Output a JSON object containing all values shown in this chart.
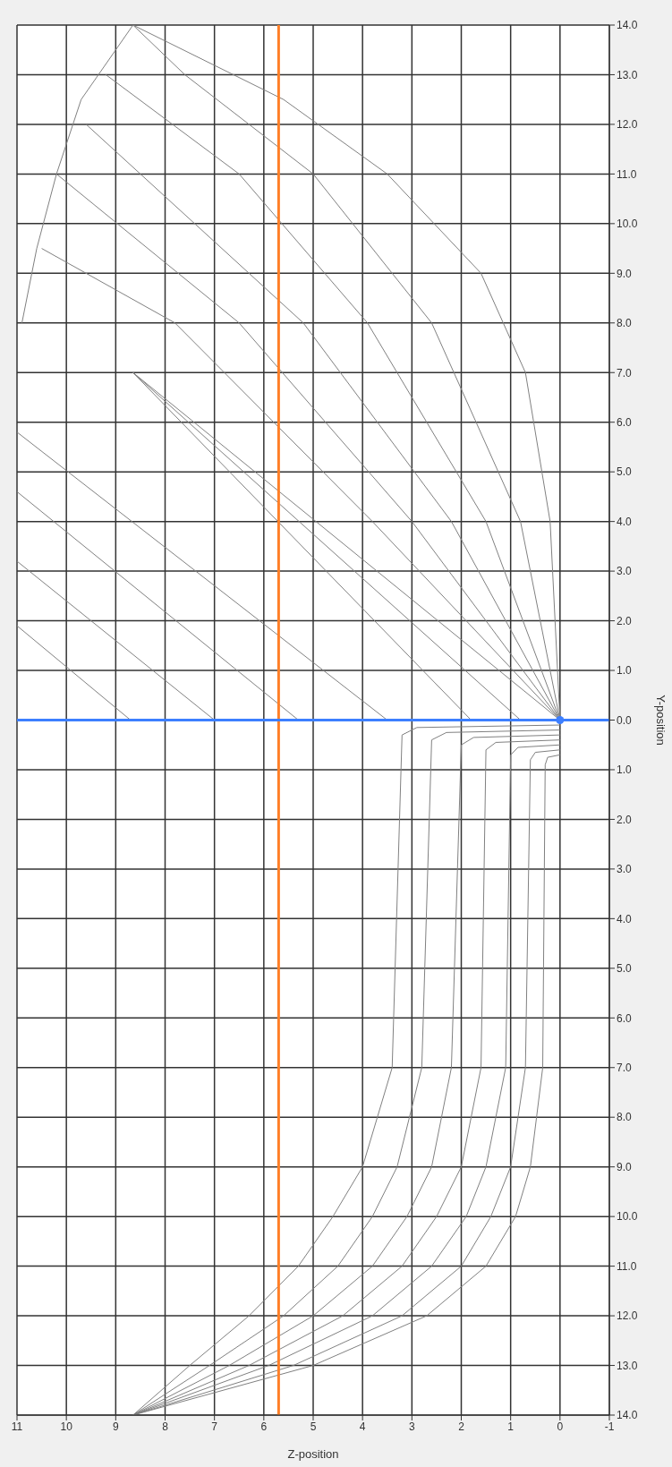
{
  "chart_data": {
    "type": "line",
    "xlabel": "Z-position",
    "ylabel": "Y-position",
    "xlim": [
      11,
      -1
    ],
    "xticks": [
      11,
      10,
      9,
      8,
      7,
      6,
      5,
      4,
      3,
      2,
      1,
      0,
      -1
    ],
    "ylim": [
      -14,
      14
    ],
    "yticks": [
      {
        "value": -14,
        "label": "14.0"
      },
      {
        "value": -13,
        "label": "13.0"
      },
      {
        "value": -12,
        "label": "12.0"
      },
      {
        "value": -11,
        "label": "11.0"
      },
      {
        "value": -10,
        "label": "10.0"
      },
      {
        "value": -9,
        "label": "9.0"
      },
      {
        "value": -8,
        "label": "8.0"
      },
      {
        "value": -7,
        "label": "7.0"
      },
      {
        "value": -6,
        "label": "6.0"
      },
      {
        "value": -5,
        "label": "5.0"
      },
      {
        "value": -4,
        "label": "4.0"
      },
      {
        "value": -3,
        "label": "3.0"
      },
      {
        "value": -2,
        "label": "2.0"
      },
      {
        "value": -1,
        "label": "1.0"
      },
      {
        "value": 0,
        "label": "0.0"
      },
      {
        "value": 1,
        "label": "1.0"
      },
      {
        "value": 2,
        "label": "2.0"
      },
      {
        "value": 3,
        "label": "3.0"
      },
      {
        "value": 4,
        "label": "4.0"
      },
      {
        "value": 5,
        "label": "5.0"
      },
      {
        "value": 6,
        "label": "6.0"
      },
      {
        "value": 7,
        "label": "7.0"
      },
      {
        "value": 8,
        "label": "8.0"
      },
      {
        "value": 9,
        "label": "9.0"
      },
      {
        "value": 10,
        "label": "10.0"
      },
      {
        "value": 11,
        "label": "11.0"
      },
      {
        "value": 12,
        "label": "12.0"
      },
      {
        "value": 13,
        "label": "13.0"
      },
      {
        "value": 14,
        "label": "14.0"
      }
    ],
    "grid": true,
    "ref_lines": [
      {
        "axis": "x",
        "value": 5.7,
        "color": "#ff7f27"
      },
      {
        "axis": "y",
        "value": 0,
        "color": "#3d7fff"
      }
    ],
    "series": [
      {
        "color": "#808080",
        "x": [
          0,
          8.65
        ],
        "values": [
          0,
          7
        ]
      },
      {
        "color": "#808080",
        "x": [
          0,
          3.8,
          7.8,
          10.5
        ],
        "values": [
          0,
          4,
          8,
          9.5
        ]
      },
      {
        "color": "#808080",
        "x": [
          0,
          3.0,
          6.5,
          10.2
        ],
        "values": [
          0,
          4,
          8,
          11
        ]
      },
      {
        "color": "#808080",
        "x": [
          0,
          2.2,
          5.2,
          9.6
        ],
        "values": [
          0,
          4,
          8,
          12
        ]
      },
      {
        "color": "#808080",
        "x": [
          0,
          1.5,
          3.9,
          6.5,
          9.2
        ],
        "values": [
          0,
          4,
          8,
          11,
          13
        ]
      },
      {
        "color": "#808080",
        "x": [
          0,
          0.8,
          2.6,
          5.0,
          7.6,
          8.65
        ],
        "values": [
          0,
          4,
          8,
          11,
          13,
          14
        ]
      },
      {
        "color": "#808080",
        "x": [
          0,
          0.2,
          0.7,
          1.6,
          3.5,
          5.6,
          8.65
        ],
        "values": [
          0,
          4,
          7,
          9,
          11,
          12.5,
          14
        ]
      },
      {
        "color": "#808080",
        "x": [
          8.7,
          11
        ],
        "values": [
          0,
          1.9
        ]
      },
      {
        "color": "#808080",
        "x": [
          7.0,
          11
        ],
        "values": [
          0,
          3.2
        ]
      },
      {
        "color": "#808080",
        "x": [
          5.3,
          11
        ],
        "values": [
          0,
          4.6
        ]
      },
      {
        "color": "#808080",
        "x": [
          3.5,
          11
        ],
        "values": [
          0,
          5.8
        ]
      },
      {
        "color": "#808080",
        "x": [
          1.8,
          8.65
        ],
        "values": [
          0,
          7
        ]
      },
      {
        "color": "#808080",
        "x": [
          0.8,
          8.65
        ],
        "values": [
          0,
          7
        ]
      },
      {
        "color": "#808080",
        "x": [
          10.9,
          10.6,
          10.2,
          9.7,
          8.65
        ],
        "values": [
          8,
          9.5,
          11,
          12.5,
          14
        ]
      },
      {
        "color": "#808080",
        "x": [
          0,
          2.9,
          3.2,
          3.4,
          4.0,
          4.6,
          5.3,
          6.3,
          7.5,
          8.65
        ],
        "values": [
          -0.1,
          -0.15,
          -0.3,
          -7,
          -9,
          -10,
          -11,
          -12,
          -13,
          -14
        ]
      },
      {
        "color": "#808080",
        "x": [
          0,
          2.3,
          2.6,
          2.8,
          3.3,
          3.8,
          4.5,
          5.6,
          7.1,
          8.65
        ],
        "values": [
          -0.2,
          -0.25,
          -0.4,
          -7,
          -9,
          -10,
          -11,
          -12,
          -13,
          -14
        ]
      },
      {
        "color": "#808080",
        "x": [
          0,
          1.75,
          2.0,
          2.2,
          2.6,
          3.1,
          3.8,
          5.0,
          6.7,
          8.65
        ],
        "values": [
          -0.3,
          -0.35,
          -0.5,
          -7,
          -9,
          -10,
          -11,
          -12,
          -13,
          -14
        ]
      },
      {
        "color": "#808080",
        "x": [
          0,
          1.3,
          1.5,
          1.6,
          2.0,
          2.5,
          3.2,
          4.4,
          6.3,
          8.65
        ],
        "values": [
          -0.4,
          -0.45,
          -0.6,
          -7,
          -9,
          -10,
          -11,
          -12,
          -13,
          -14
        ]
      },
      {
        "color": "#808080",
        "x": [
          0,
          0.85,
          1.0,
          1.1,
          1.5,
          1.9,
          2.6,
          3.8,
          5.9,
          8.65
        ],
        "values": [
          -0.5,
          -0.55,
          -0.7,
          -7,
          -9,
          -10,
          -11,
          -12,
          -13,
          -14
        ]
      },
      {
        "color": "#808080",
        "x": [
          0,
          0.5,
          0.6,
          0.7,
          1.0,
          1.4,
          2.0,
          3.2,
          5.4,
          8.65
        ],
        "values": [
          -0.6,
          -0.65,
          -0.8,
          -7,
          -9,
          -10,
          -11,
          -12,
          -13,
          -14
        ]
      },
      {
        "color": "#808080",
        "x": [
          0,
          0.25,
          0.3,
          0.35,
          0.6,
          0.9,
          1.5,
          2.7,
          5.0,
          8.65
        ],
        "values": [
          -0.7,
          -0.75,
          -0.9,
          -7,
          -9,
          -10,
          -11,
          -12,
          -13,
          -14
        ]
      },
      {
        "type": "scatter",
        "color": "#3d7fff",
        "x": [
          0
        ],
        "values": [
          0
        ]
      }
    ]
  }
}
